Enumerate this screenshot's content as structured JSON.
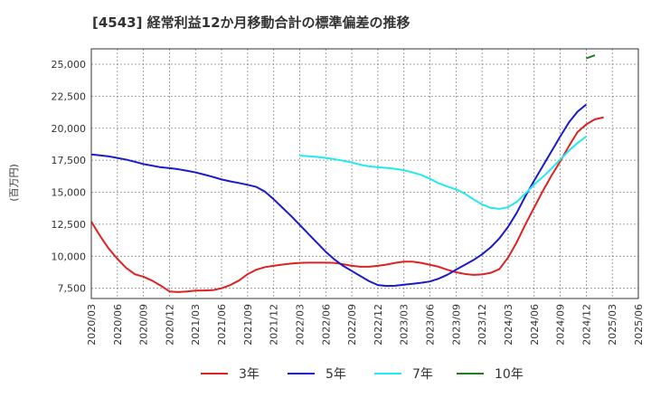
{
  "chart_data": {
    "type": "line",
    "title": "[4543]  経常利益12か月移動合計の標準偏差の推移",
    "ylabel": "(百万円)",
    "xlabel": "",
    "ylim": [
      6700,
      26200
    ],
    "yticks": [
      7500,
      10000,
      12500,
      15000,
      17500,
      20000,
      22500,
      25000
    ],
    "ytick_labels": [
      "7,500",
      "10,000",
      "12,500",
      "15,000",
      "17,500",
      "20,000",
      "22,500",
      "25,000"
    ],
    "xticks": [
      "2020/03",
      "2020/06",
      "2020/09",
      "2020/12",
      "2021/03",
      "2021/06",
      "2021/09",
      "2021/12",
      "2022/03",
      "2022/06",
      "2022/09",
      "2022/12",
      "2023/03",
      "2023/06",
      "2023/09",
      "2023/12",
      "2024/03",
      "2024/06",
      "2024/09",
      "2024/12",
      "2025/03",
      "2025/06"
    ],
    "grid": true,
    "legend_position": "bottom",
    "series": [
      {
        "name": "3年",
        "color": "#dd2222",
        "start": "2020/03",
        "values": [
          12700,
          11600,
          10600,
          9800,
          9100,
          8600,
          8400,
          8100,
          7700,
          7250,
          7200,
          7250,
          7320,
          7330,
          7350,
          7500,
          7750,
          8100,
          8600,
          8950,
          9150,
          9250,
          9350,
          9430,
          9480,
          9500,
          9500,
          9500,
          9480,
          9380,
          9250,
          9180,
          9180,
          9250,
          9350,
          9480,
          9580,
          9580,
          9480,
          9330,
          9180,
          8950,
          8750,
          8620,
          8550,
          8580,
          8700,
          9000,
          9900,
          11100,
          12500,
          13800,
          15100,
          16300,
          17400,
          18600,
          19700,
          20300,
          20700,
          20850
        ]
      },
      {
        "name": "5年",
        "color": "#1a1ac8",
        "start": "2020/03",
        "values": [
          17950,
          17880,
          17800,
          17680,
          17550,
          17380,
          17200,
          17080,
          16950,
          16880,
          16800,
          16680,
          16550,
          16380,
          16200,
          16000,
          15850,
          15720,
          15580,
          15420,
          15050,
          14450,
          13800,
          13150,
          12450,
          11750,
          11050,
          10350,
          9750,
          9250,
          8850,
          8450,
          8050,
          7750,
          7680,
          7700,
          7780,
          7850,
          7930,
          8030,
          8250,
          8550,
          8950,
          9320,
          9700,
          10150,
          10700,
          11400,
          12300,
          13400,
          14700,
          15900,
          17050,
          18200,
          19350,
          20450,
          21300,
          21850
        ]
      },
      {
        "name": "7年",
        "color": "#22e8f0",
        "start": "2022/03",
        "values": [
          17850,
          17820,
          17760,
          17680,
          17580,
          17460,
          17320,
          17150,
          17020,
          16950,
          16900,
          16830,
          16720,
          16550,
          16350,
          16050,
          15700,
          15450,
          15230,
          14900,
          14450,
          14050,
          13780,
          13700,
          13830,
          14250,
          14900,
          15600,
          16200,
          16850,
          17550,
          18250,
          18850,
          19350
        ]
      },
      {
        "name": "10年",
        "color": "#1e7d1e",
        "start": "2024/12",
        "values": [
          25450,
          25700
        ]
      }
    ]
  }
}
